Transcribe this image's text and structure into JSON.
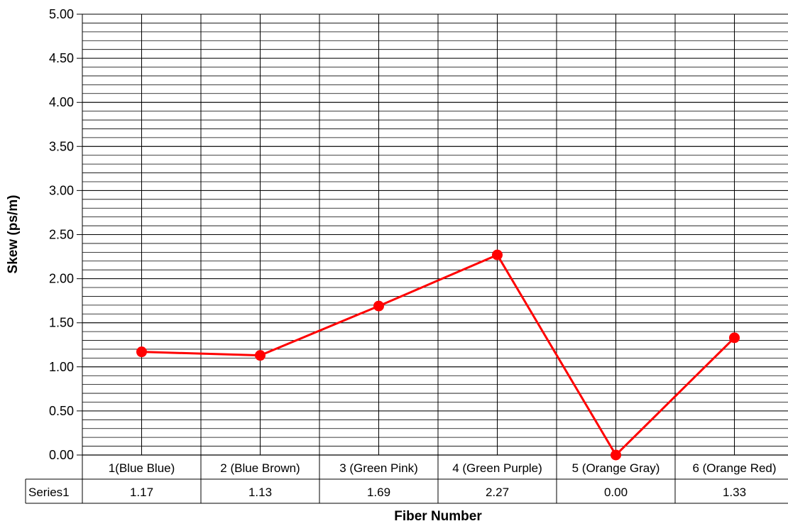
{
  "chart_data": {
    "type": "line",
    "title": "",
    "xlabel": "Fiber Number",
    "ylabel": "Skew (ps/m)",
    "ylim": [
      0,
      5
    ],
    "y_major_ticks": [
      "0.00",
      "0.50",
      "1.00",
      "1.50",
      "2.00",
      "2.50",
      "3.00",
      "3.50",
      "4.00",
      "4.50",
      "5.00"
    ],
    "y_minor_step": 0.1,
    "grid": true,
    "data_table": true,
    "categories": [
      "1(Blue Blue)",
      "2 (Blue Brown)",
      "3 (Green Pink)",
      "4 (Green Purple)",
      "5 (Orange Gray)",
      "6 (Orange Red)"
    ],
    "series": [
      {
        "name": "Series1",
        "values": [
          1.17,
          1.13,
          1.69,
          2.27,
          0.0,
          1.33
        ],
        "labels": [
          "1.17",
          "1.13",
          "1.69",
          "2.27",
          "0.00",
          "1.33"
        ],
        "color": "#ff0000"
      }
    ]
  }
}
